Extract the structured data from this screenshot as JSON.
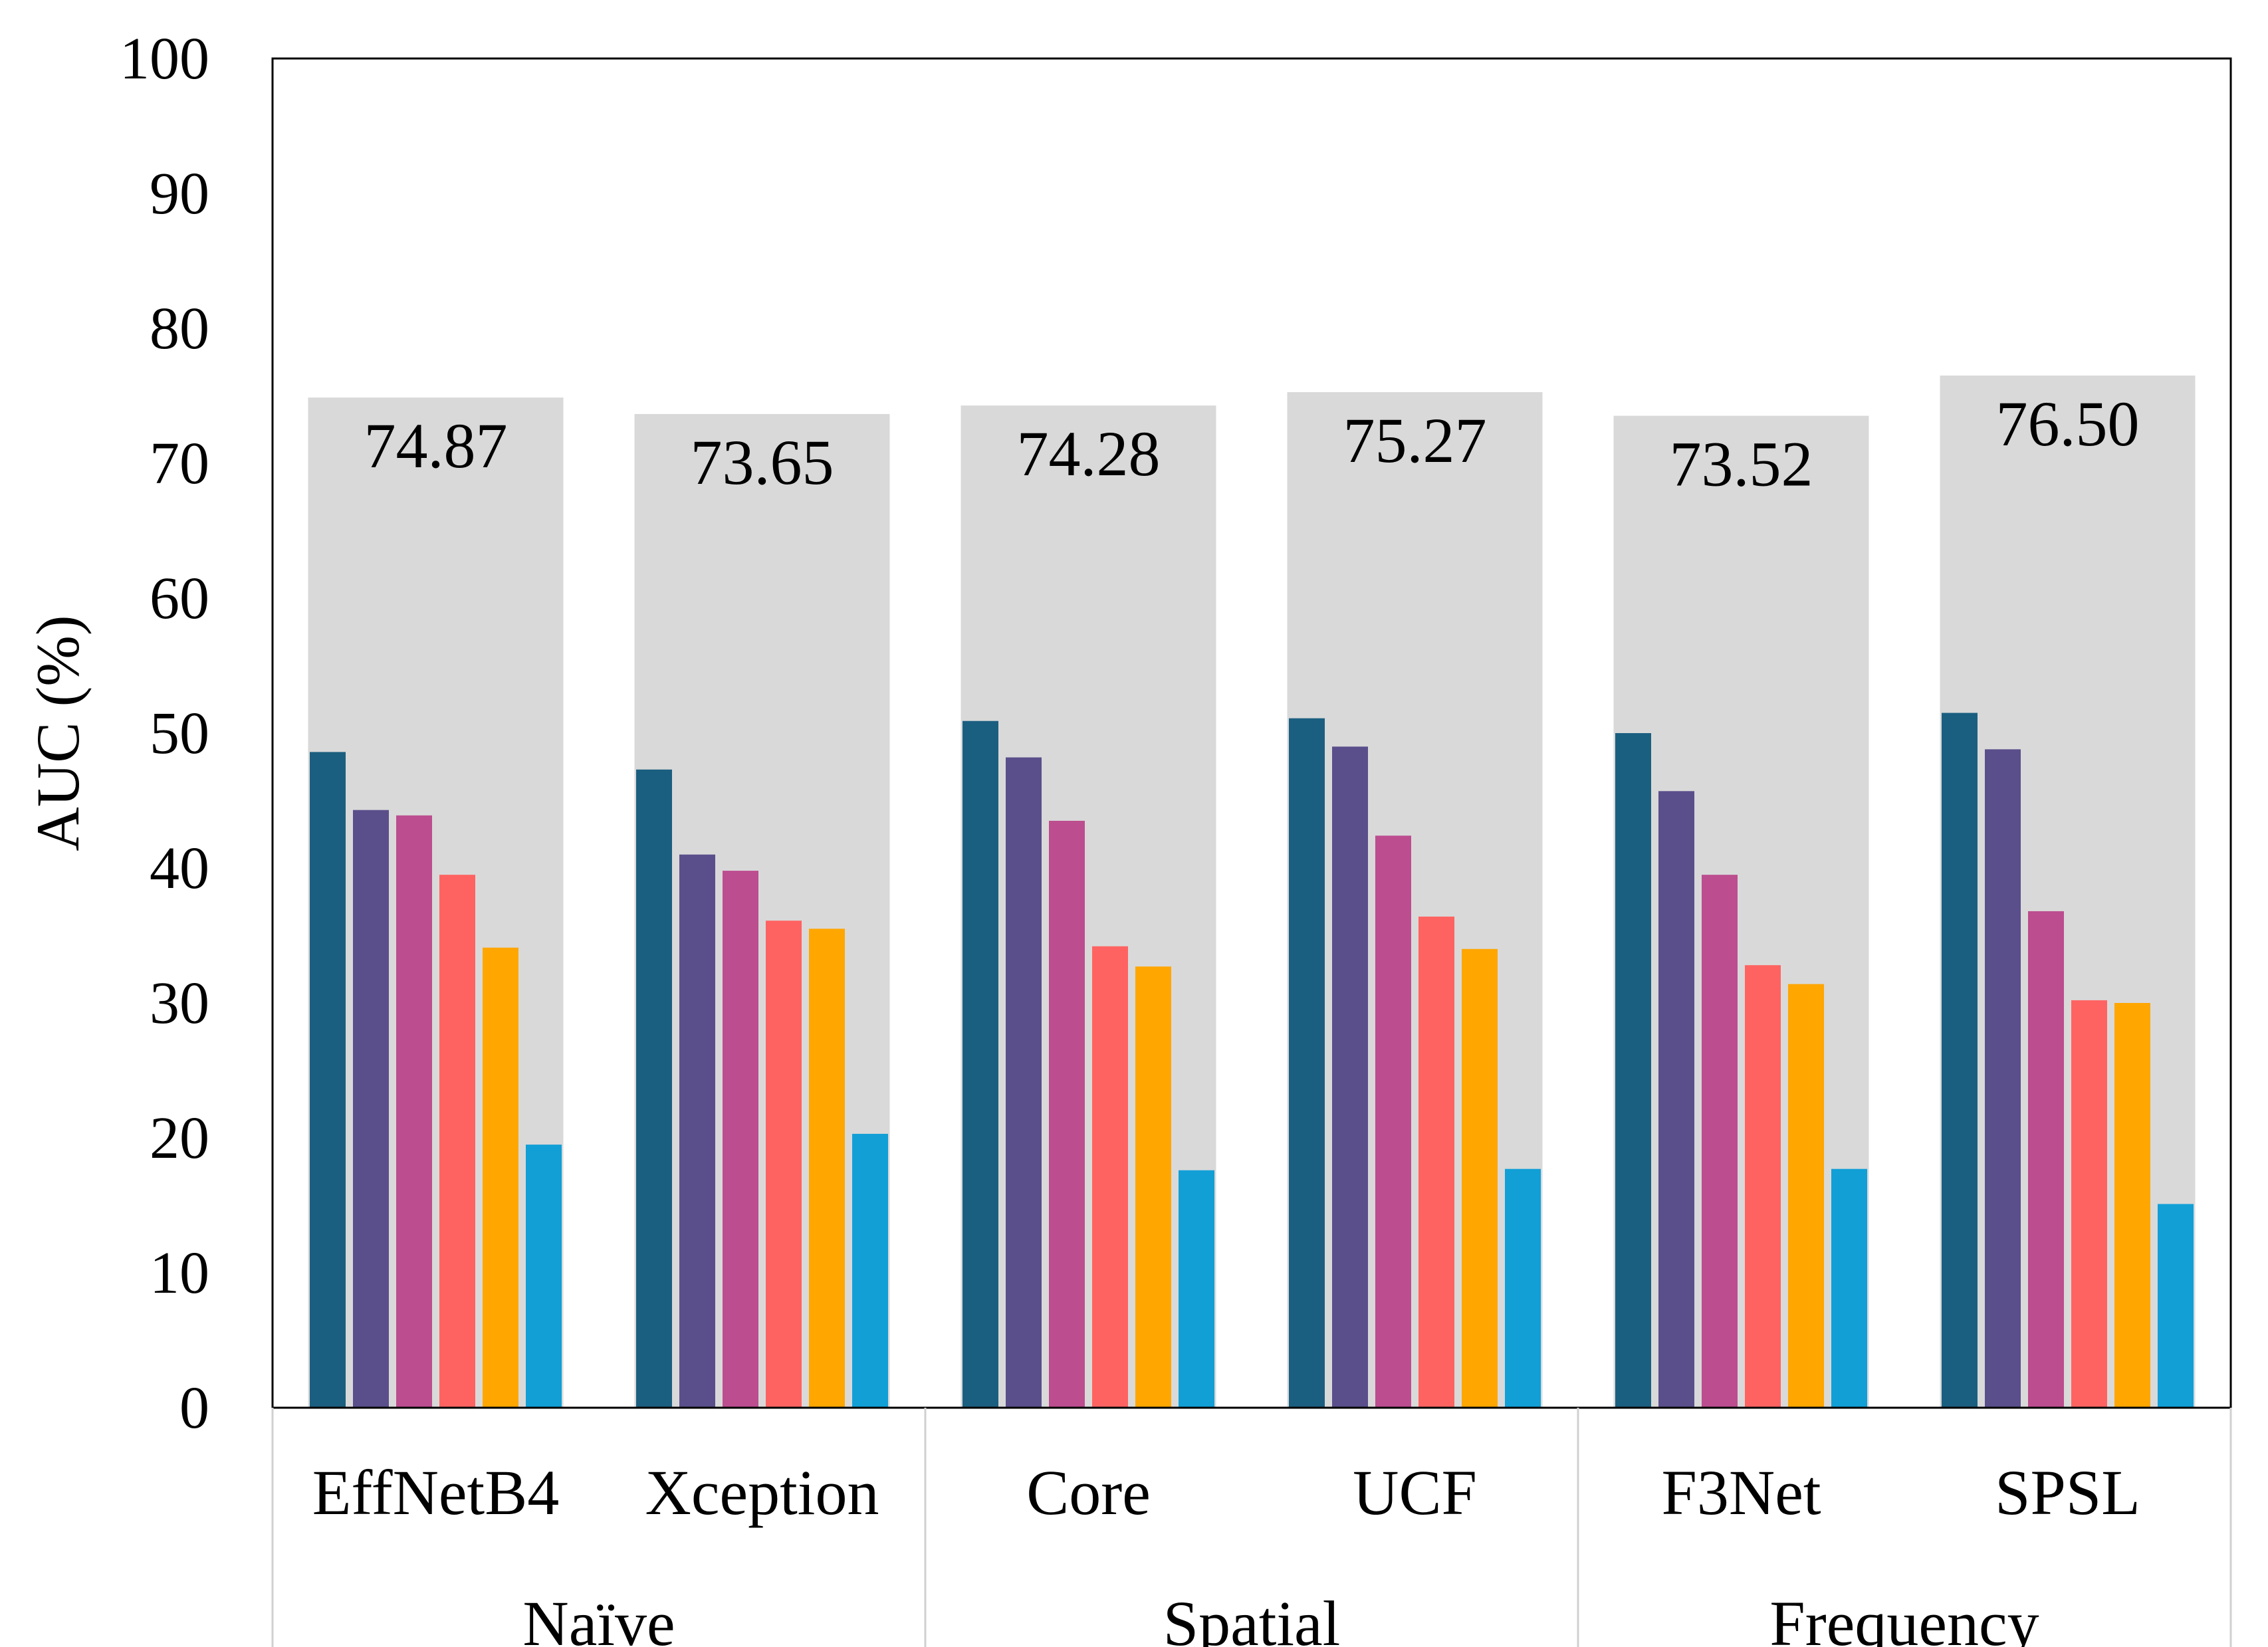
{
  "chart_data": {
    "type": "bar",
    "title": "",
    "xlabel": "",
    "ylabel": "AUC (%)",
    "ylim": [
      0,
      100
    ],
    "yticks": [
      0,
      10,
      20,
      30,
      40,
      50,
      60,
      70,
      80,
      90,
      100
    ],
    "grid": false,
    "legend": "none",
    "categories": [
      "EffNetB4",
      "Xception",
      "Core",
      "UCF",
      "F3Net",
      "SPSL"
    ],
    "groups": [
      {
        "label": "Naïve",
        "categories": [
          "EffNetB4",
          "Xception"
        ]
      },
      {
        "label": "Spatial",
        "categories": [
          "Core",
          "UCF"
        ]
      },
      {
        "label": "Frequency",
        "categories": [
          "F3Net",
          "SPSL"
        ]
      }
    ],
    "background_values": [
      74.87,
      73.65,
      74.28,
      75.27,
      73.52,
      76.5
    ],
    "background_labels": [
      "74.87",
      "73.65",
      "74.28",
      "75.27",
      "73.52",
      "76.50"
    ],
    "series": [
      {
        "color": "#1b5f80",
        "values": [
          48.6,
          47.3,
          50.9,
          51.1,
          50.0,
          51.5
        ]
      },
      {
        "color": "#5a4f8b",
        "values": [
          44.3,
          41.0,
          48.2,
          49.0,
          45.7,
          48.8
        ]
      },
      {
        "color": "#bc4d8f",
        "values": [
          43.9,
          39.8,
          43.5,
          42.4,
          39.5,
          36.8
        ]
      },
      {
        "color": "#ff6361",
        "values": [
          39.5,
          36.1,
          34.2,
          36.4,
          32.8,
          30.2
        ]
      },
      {
        "color": "#ffa600",
        "values": [
          34.1,
          35.5,
          32.7,
          34.0,
          31.4,
          30.0
        ]
      },
      {
        "color": "#119fd6",
        "values": [
          19.5,
          20.3,
          17.6,
          17.7,
          17.7,
          15.1
        ]
      }
    ],
    "colors": {
      "background_bar": "#d9d9d9",
      "axis": "#000000",
      "separator": "#d0d0d0"
    }
  }
}
